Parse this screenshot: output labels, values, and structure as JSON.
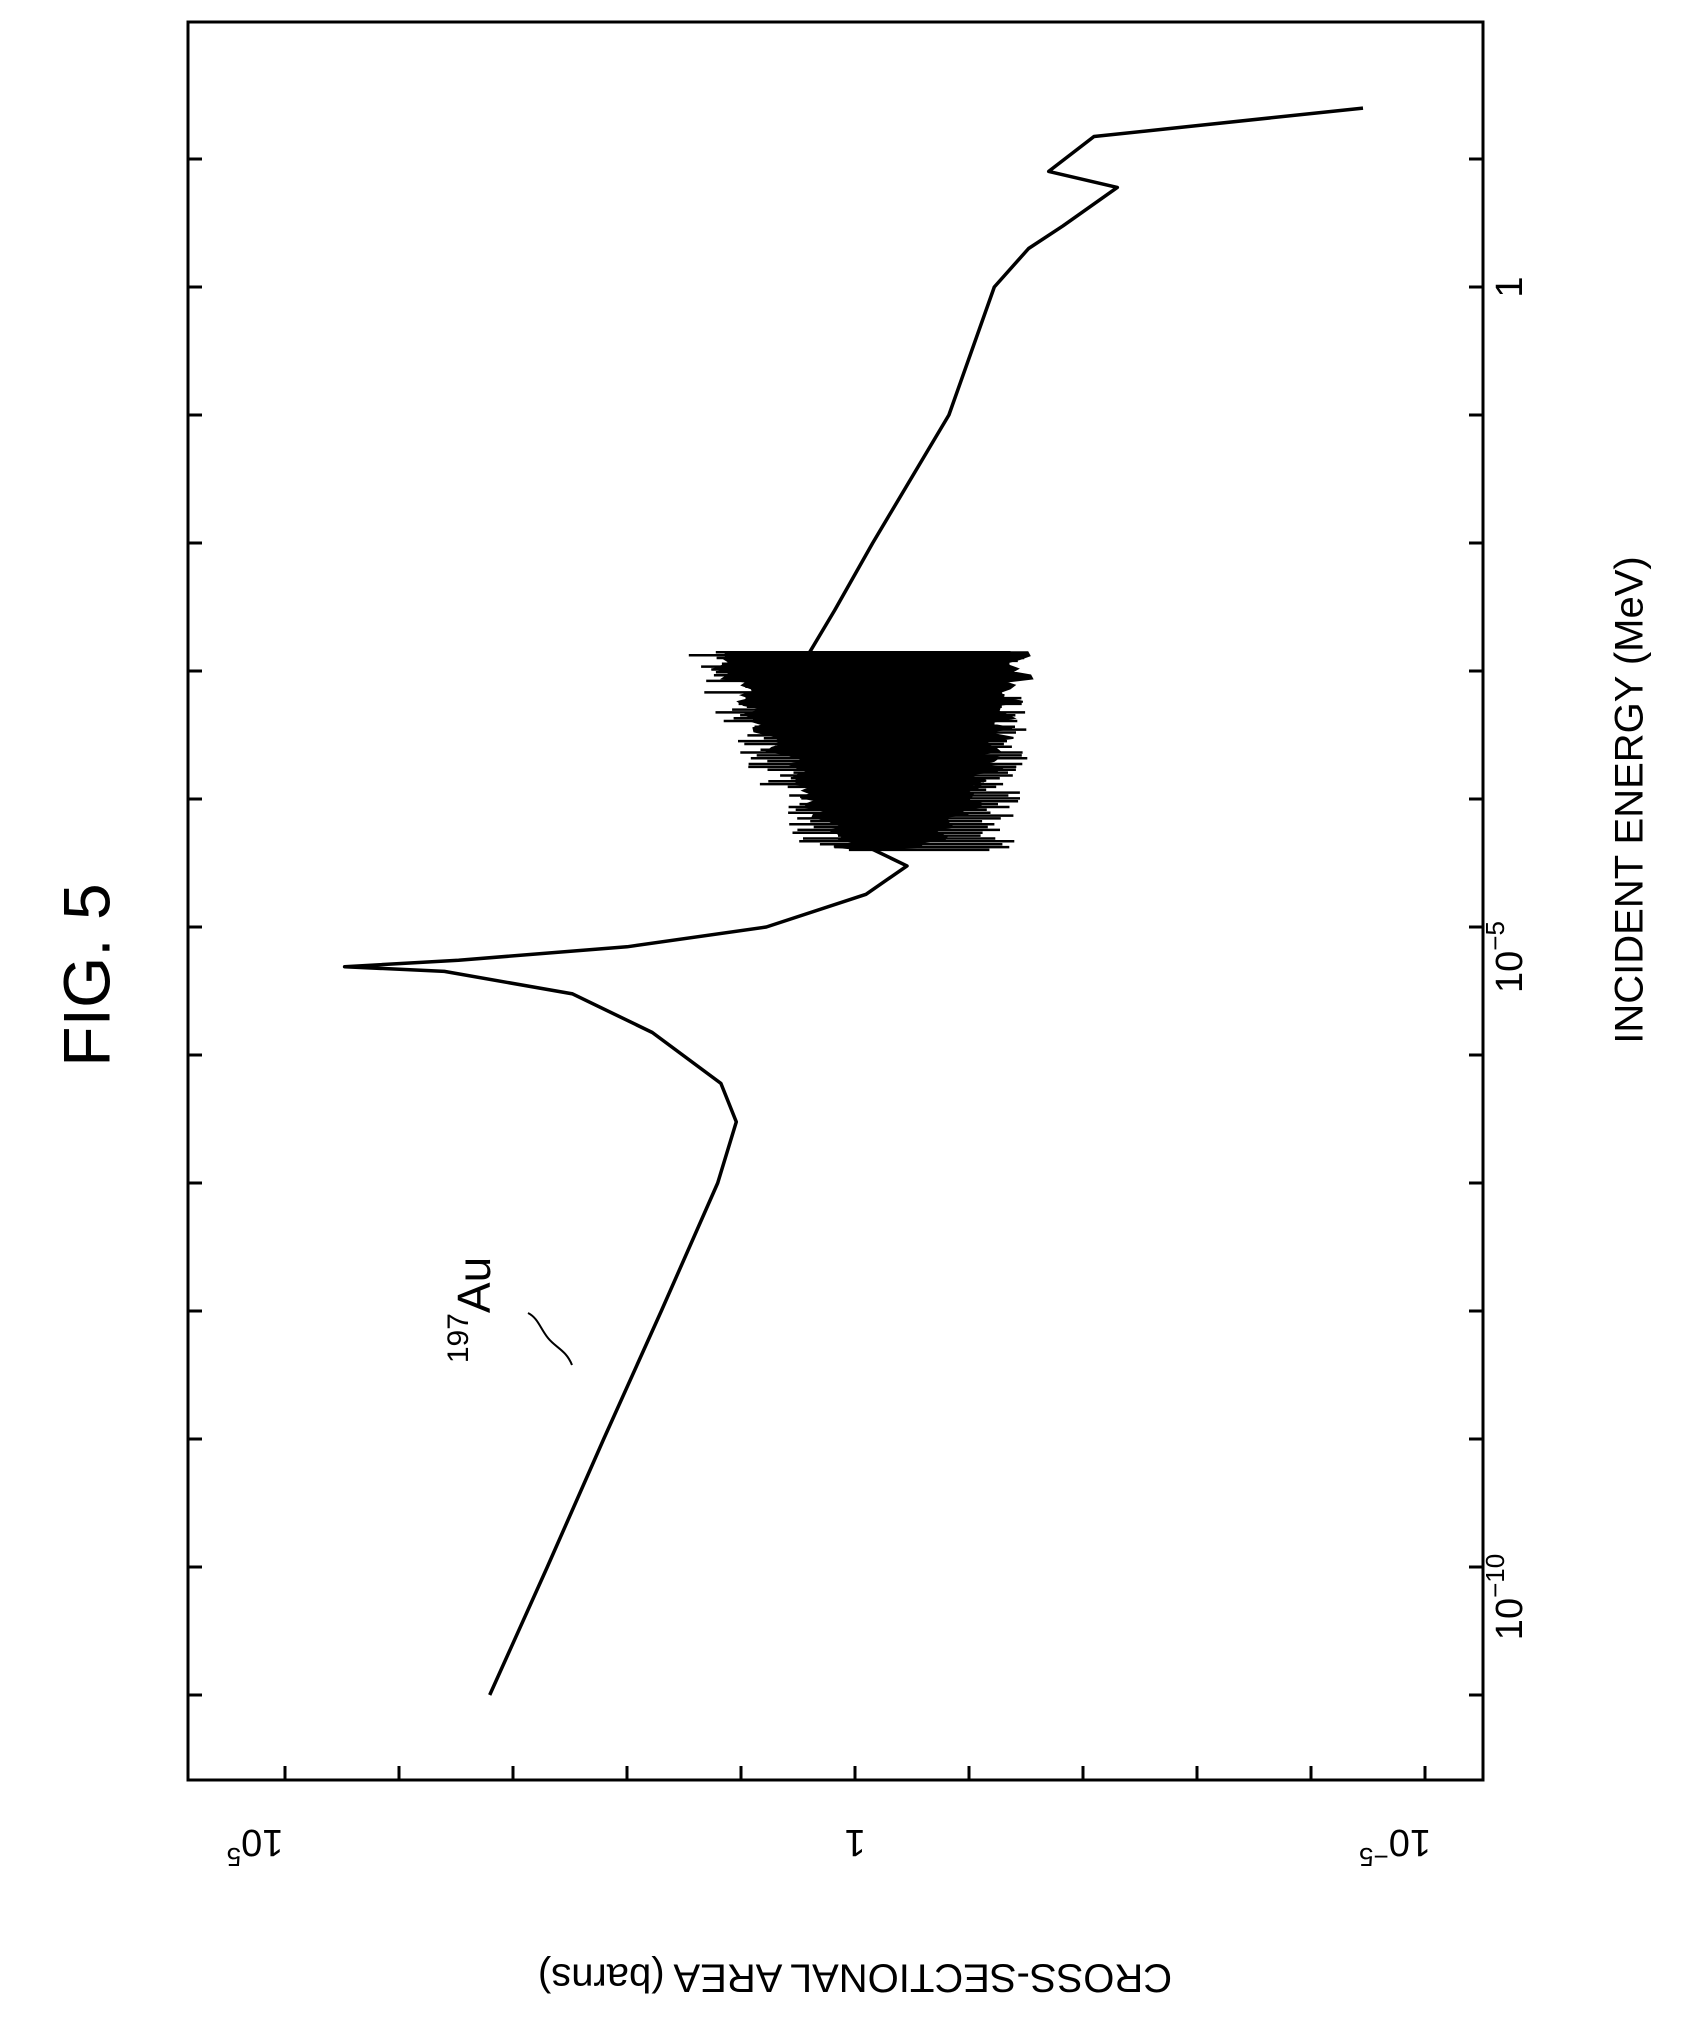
{
  "figure_label": "FIG. 5",
  "curve_label": {
    "sup": "197",
    "base": "Au"
  },
  "chart_data": {
    "type": "line",
    "title": "",
    "xlabel": "INCIDENT ENERGY (MeV)",
    "ylabel": "CROSS-SECTIONAL AREA (barns)",
    "x_scale": "log",
    "y_scale": "log",
    "xlim": [
      1e-11,
      30
    ],
    "ylim": [
      3e-06,
      300000.0
    ],
    "x_tick_labels": [
      {
        "value": 1e-10,
        "base": "10",
        "exp": "−10"
      },
      {
        "value": 1e-05,
        "base": "10",
        "exp": "−5"
      },
      {
        "value": 1,
        "base": "1",
        "exp": ""
      }
    ],
    "y_tick_labels": [
      {
        "value": 100000.0,
        "base": "10",
        "exp": "5"
      },
      {
        "value": 1,
        "base": "1",
        "exp": ""
      },
      {
        "value": 1e-05,
        "base": "10",
        "exp": "−5"
      }
    ],
    "grid": false,
    "rotated_plot_image": true,
    "series": [
      {
        "points": [
          [
            1e-11,
            1600
          ],
          [
            1e-10,
            500
          ],
          [
            1e-09,
            160
          ],
          [
            1e-08,
            50
          ],
          [
            1e-07,
            16
          ],
          [
            3e-07,
            11
          ],
          [
            6e-07,
            15
          ],
          [
            1.5e-06,
            60
          ],
          [
            3e-06,
            300
          ],
          [
            4.5e-06,
            4000
          ],
          [
            4.9e-06,
            30000
          ],
          [
            5.5e-06,
            3000
          ],
          [
            7e-06,
            100
          ],
          [
            1e-05,
            6
          ],
          [
            1.8e-05,
            0.8
          ],
          [
            3e-05,
            0.35
          ],
          [
            4.5e-05,
            0.9
          ],
          [
            0.00013,
            0.08
          ],
          [
            0.0014,
            2.5
          ],
          [
            0.003,
            1.5
          ],
          [
            0.01,
            0.7
          ],
          [
            0.1,
            0.15
          ],
          [
            1,
            0.06
          ],
          [
            2,
            0.03
          ],
          [
            3,
            0.015
          ],
          [
            6,
            0.005
          ],
          [
            8,
            0.02
          ],
          [
            15,
            0.008
          ],
          [
            25,
            3.5e-05
          ]
        ]
      }
    ],
    "resonance_band": {
      "x_range": [
        4e-05,
        0.0014
      ],
      "y_upper": [
        0.8,
        12
      ],
      "y_lower": [
        0.7,
        0.04
      ]
    }
  }
}
